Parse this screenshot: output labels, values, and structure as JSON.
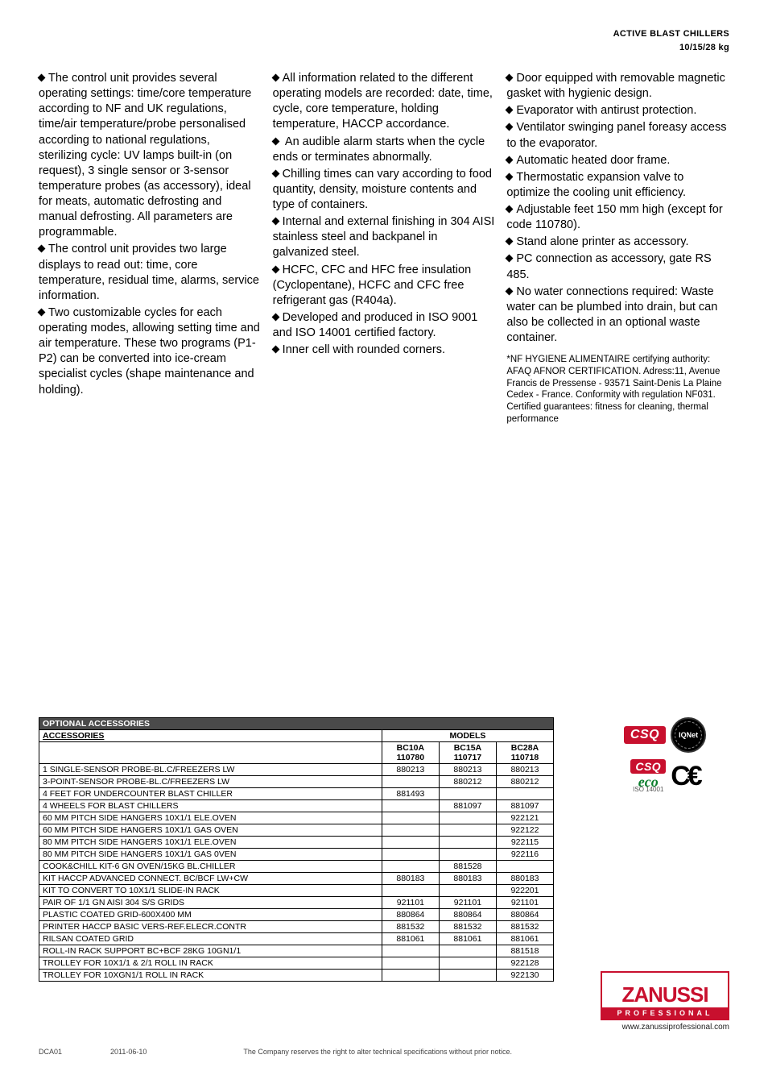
{
  "header": {
    "title_line1": "ACTIVE BLAST CHILLERS",
    "title_line2": "10/15/28 kg"
  },
  "columns": {
    "col1": [
      "The control unit provides several operating settings: time/core temperature according to NF and UK regulations, time/air temperature/probe personalised according to national regulations, sterilizing cycle: UV lamps built-in (on request), 3 single sensor or 3-sensor temperature probes (as accessory), ideal for meats, automatic defrosting and manual defrosting. All parameters are programmable.",
      "The control unit provides two large displays to read out: time, core temperature, residual time, alarms, service information.",
      "Two customizable cycles for each operating modes, allowing setting time and air temperature. These two programs (P1-P2) can be converted into ice-cream specialist cycles (shape maintenance and holding)."
    ],
    "col2": [
      "All information related to the different operating models are recorded: date, time, cycle, core temperature, holding temperature, HACCP accordance.",
      " An audible alarm starts when the cycle ends or terminates abnormally.",
      "Chilling times can vary according to food quantity, density, moisture contents and type of containers.",
      "Internal and external finishing in 304 AISI stainless steel and backpanel in galvanized steel.",
      "HCFC, CFC and HFC free insulation (Cyclopentane), HCFC and CFC free refrigerant gas (R404a).",
      "Developed and produced in ISO 9001 and ISO 14001 certified factory.",
      "Inner cell with rounded corners."
    ],
    "col3": [
      "Door equipped with removable magnetic gasket with hygienic design.",
      "Evaporator with antirust protection.",
      "Ventilator swinging panel foreasy access to the evaporator.",
      "Automatic heated door frame.",
      "Thermostatic expansion valve to optimize the cooling unit efficiency.",
      "Adjustable feet 150 mm high (except for code 110780).",
      "Stand alone printer as accessory.",
      "PC connection as accessory, gate RS 485.",
      "No water connections required: Waste water can be plumbed into drain, but can also be collected in an optional waste container."
    ],
    "footnote": " *NF HYGIENE ALIMENTAIRE certifying authority: AFAQ AFNOR CERTIFICATION. Adress:11, Avenue Francis de Pressense - 93571 Saint-Denis La Plaine Cedex - France. Conformity with regulation NF031. Certified guarantees: fitness for cleaning, thermal performance"
  },
  "table": {
    "title": "OPTIONAL ACCESSORIES",
    "accessories_label": "ACCESSORIES",
    "models_label": "MODELS",
    "model_cols": [
      {
        "name": "BC10A",
        "code": "110780"
      },
      {
        "name": "BC15A",
        "code": "110717"
      },
      {
        "name": "BC28A",
        "code": "110718"
      }
    ],
    "rows": [
      {
        "label": "1 SINGLE-SENSOR PROBE-BL.C/FREEZERS LW",
        "vals": [
          "880213",
          "880213",
          "880213"
        ]
      },
      {
        "label": "3-POINT-SENSOR PROBE-BL.C/FREEZERS LW",
        "vals": [
          "",
          "880212",
          "880212"
        ]
      },
      {
        "label": "4 FEET FOR UNDERCOUNTER BLAST CHILLER",
        "vals": [
          "881493",
          "",
          ""
        ]
      },
      {
        "label": "4 WHEELS FOR BLAST CHILLERS",
        "vals": [
          "",
          "881097",
          "881097"
        ]
      },
      {
        "label": "60 MM PITCH SIDE HANGERS 10X1/1 ELE.OVEN",
        "vals": [
          "",
          "",
          "922121"
        ]
      },
      {
        "label": "60 MM PITCH SIDE HANGERS 10X1/1 GAS OVEN",
        "vals": [
          "",
          "",
          "922122"
        ]
      },
      {
        "label": "80 MM PITCH SIDE HANGERS 10X1/1 ELE.OVEN",
        "vals": [
          "",
          "",
          "922115"
        ]
      },
      {
        "label": "80 MM PITCH SIDE HANGERS 10X1/1 GAS 0VEN",
        "vals": [
          "",
          "",
          "922116"
        ]
      },
      {
        "label": "COOK&CHILL KIT-6 GN OVEN/15KG BL.CHILLER",
        "vals": [
          "",
          "881528",
          ""
        ]
      },
      {
        "label": "KIT HACCP ADVANCED CONNECT. BC/BCF LW+CW",
        "vals": [
          "880183",
          "880183",
          "880183"
        ]
      },
      {
        "label": "KIT TO CONVERT TO 10X1/1 SLIDE-IN RACK",
        "vals": [
          "",
          "",
          "922201"
        ]
      },
      {
        "label": "PAIR OF 1/1 GN AISI 304 S/S GRIDS",
        "vals": [
          "921101",
          "921101",
          "921101"
        ]
      },
      {
        "label": "PLASTIC COATED GRID-600X400 MM",
        "vals": [
          "880864",
          "880864",
          "880864"
        ]
      },
      {
        "label": "PRINTER HACCP BASIC VERS-REF.ELECR.CONTR",
        "vals": [
          "881532",
          "881532",
          "881532"
        ]
      },
      {
        "label": "RILSAN COATED GRID",
        "vals": [
          "881061",
          "881061",
          "881061"
        ]
      },
      {
        "label": "ROLL-IN RACK SUPPORT BC+BCF 28KG 10GN1/1",
        "vals": [
          "",
          "",
          "881518"
        ]
      },
      {
        "label": "TROLLEY FOR 10X1/1 & 2/1 ROLL IN RACK",
        "vals": [
          "",
          "",
          "922128"
        ]
      },
      {
        "label": "TROLLEY FOR 10XGN1/1 ROLL IN RACK",
        "vals": [
          "",
          "",
          "922130"
        ]
      }
    ]
  },
  "badges": {
    "csq": "CSQ",
    "iqnet": "IQNet",
    "eco": "eco",
    "ce": "C€",
    "iso": "ISO 14001"
  },
  "logo": {
    "brand": "ZANUSSI",
    "sub": "PROFESSIONAL",
    "website": "www.zanussiprofessional.com"
  },
  "footer": {
    "ref": "DCA01",
    "date": "2011-06-10",
    "note": "The Company reserves the right to alter technical specifications without prior notice."
  },
  "colors": {
    "brand_red": "#c8102e",
    "header_dark": "#4a4a4a",
    "text": "#000000",
    "bg": "#ffffff"
  }
}
